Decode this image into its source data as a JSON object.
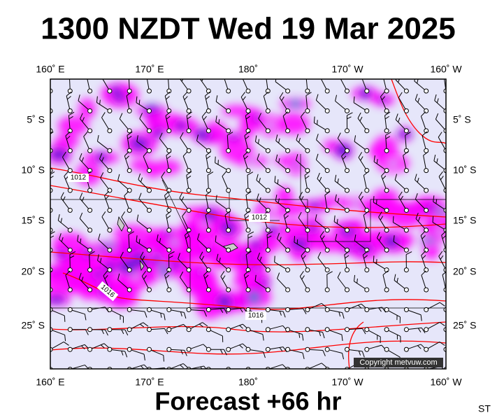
{
  "header": {
    "title": "1300 NZDT Wed 19 Mar 2025"
  },
  "axes": {
    "top_labels": [
      "160˚ E",
      "170˚ E",
      "180˚",
      "170˚ W",
      "160˚ W"
    ],
    "bottom_labels": [
      "160˚ E",
      "170˚ E",
      "180˚",
      "170˚ W",
      "160˚ W"
    ],
    "left_labels": [
      "5˚ S",
      "10˚ S",
      "15˚ S",
      "20˚ S",
      "25˚ S"
    ],
    "right_labels": [
      "5˚ S",
      "10˚ S",
      "15˚ S",
      "20˚ S",
      "25˚ S"
    ]
  },
  "isobar_labels": [
    "1012",
    "1012",
    "1016",
    "1016"
  ],
  "copyright": "Copyright metvuw.com",
  "footer": {
    "forecast": "Forecast +66 hr",
    "station": "ST"
  }
}
